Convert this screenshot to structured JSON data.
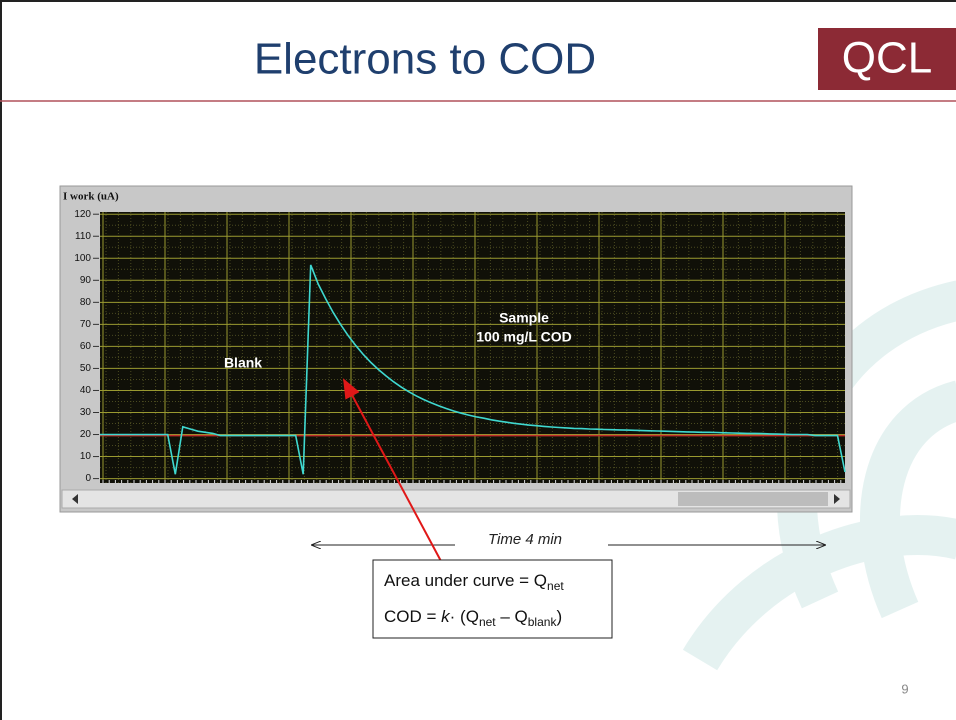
{
  "header": {
    "title": "Electrons to COD",
    "logo": "QCL"
  },
  "chart_data": {
    "type": "line",
    "y_label": "I work (uA)",
    "values": [
      20,
      20,
      20,
      20,
      20,
      20,
      20,
      20,
      20,
      20,
      2,
      23.5,
      22.5,
      21.5,
      21,
      20.5,
      19.5,
      19.5,
      19.5,
      19.5,
      19.5,
      19.5,
      19.5,
      19.5,
      19.5,
      19.5,
      19.5,
      2,
      97,
      88.3,
      81.5,
      75.3,
      69.8,
      64.8,
      60.3,
      56.3,
      52.7,
      49.5,
      46.6,
      44,
      41.6,
      39.5,
      37.6,
      35.9,
      34.4,
      33.1,
      31.8,
      30.7,
      29.7,
      28.8,
      28,
      27.4,
      26.7,
      26.1,
      25.6,
      25.1,
      24.7,
      24.3,
      24,
      23.7,
      23.4,
      23.2,
      23,
      22.8,
      22.7,
      22.5,
      22.4,
      22.3,
      22.2,
      22.1,
      22,
      21.9,
      21.8,
      21.7,
      21.6,
      21.5,
      21.4,
      21.3,
      21.2,
      21.1,
      21,
      21,
      20.9,
      20.8,
      20.7,
      20.6,
      20.5,
      20.5,
      20.4,
      20.3,
      20.2,
      20.1,
      20,
      20,
      20,
      19.5,
      19.5,
      19.5,
      19.5,
      3
    ],
    "color": "#3fd8d0",
    "ylim": [
      -2,
      121
    ],
    "yticks": [
      0,
      10,
      20,
      30,
      40,
      50,
      60,
      70,
      80,
      90,
      100,
      110,
      120
    ],
    "grid": true,
    "reference_value": 19.5,
    "reference_color": "#c0302a",
    "annotations": [
      "Blank",
      "Sample",
      "100 mg/L COD"
    ],
    "time_label": "Time 4 min"
  },
  "formula": {
    "line1": [
      "Area under curve = Q",
      "net"
    ],
    "line2": [
      "COD = ",
      "k",
      "· (Q",
      "net",
      " – Q",
      "blank",
      ")"
    ]
  },
  "page_number": "9"
}
